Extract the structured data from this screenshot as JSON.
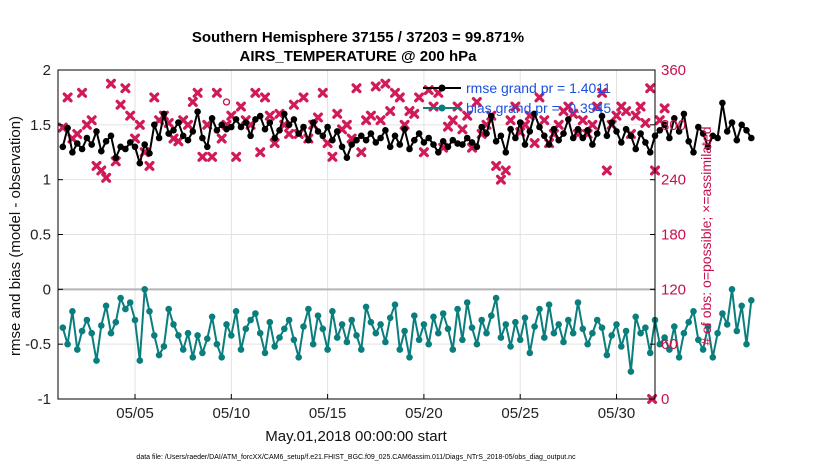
{
  "chart_data": {
    "type": "line",
    "title": "Southern Hemisphere 37155 / 37203 = 99.871%",
    "subtitle": "AIRS_TEMPERATURE @ 200 hPa",
    "xlabel": "May.01,2018 00:00:00 start",
    "ylabel": "rmse and bias (model - observation)",
    "ylabel_right": "# of obs: o=possible; ×=assimilated",
    "xlim": [
      1,
      32
    ],
    "ylim": [
      -1,
      2
    ],
    "ylim_right": [
      0,
      360
    ],
    "x_ticks": [
      5,
      10,
      15,
      20,
      25,
      30
    ],
    "x_tick_labels": [
      "05/05",
      "05/10",
      "05/15",
      "05/20",
      "05/25",
      "05/30"
    ],
    "y_ticks": [
      -1,
      -0.5,
      0,
      0.5,
      1,
      1.5,
      2
    ],
    "y_tick_labels": [
      "-1",
      "-0.5",
      "0",
      "0.5",
      "1",
      "1.5",
      "2"
    ],
    "y_right_ticks": [
      0,
      60,
      120,
      180,
      240,
      300,
      360
    ],
    "y_right_tick_labels": [
      "0",
      "60",
      "120",
      "180",
      "240",
      "300",
      "360"
    ],
    "grid": true,
    "legend_position": "top-right",
    "x_start": 1.25,
    "x_step": 0.25,
    "series": [
      {
        "name": "rmse grand pr = 1.4011",
        "color": "#000000",
        "marker": "circle",
        "values": [
          1.3,
          1.47,
          1.25,
          1.33,
          1.28,
          1.38,
          1.32,
          1.44,
          1.26,
          1.35,
          1.4,
          1.2,
          1.3,
          1.28,
          1.34,
          1.3,
          1.15,
          1.32,
          1.24,
          1.5,
          1.38,
          1.6,
          1.42,
          1.45,
          1.52,
          1.4,
          1.36,
          1.44,
          1.62,
          1.38,
          1.3,
          1.56,
          1.45,
          1.5,
          1.46,
          1.48,
          1.55,
          1.48,
          1.52,
          1.4,
          1.55,
          1.58,
          1.46,
          1.52,
          1.38,
          1.45,
          1.6,
          1.5,
          1.55,
          1.42,
          1.48,
          1.36,
          1.52,
          1.44,
          1.4,
          1.48,
          1.36,
          1.44,
          1.3,
          1.2,
          1.32,
          1.36,
          1.4,
          1.36,
          1.42,
          1.34,
          1.38,
          1.45,
          1.3,
          1.4,
          1.32,
          1.46,
          1.28,
          1.36,
          1.42,
          1.34,
          1.38,
          1.32,
          1.25,
          1.35,
          1.3,
          1.36,
          1.33,
          1.32,
          1.38,
          1.34,
          1.3,
          1.48,
          1.42,
          1.58,
          1.35,
          1.4,
          1.25,
          1.46,
          1.38,
          1.52,
          1.32,
          1.44,
          1.6,
          1.48,
          1.4,
          1.32,
          1.46,
          1.36,
          1.42,
          1.55,
          1.38,
          1.46,
          1.38,
          1.45,
          1.32,
          1.42,
          1.58,
          1.4,
          1.52,
          1.44,
          1.34,
          1.46,
          1.4,
          1.28,
          1.42,
          1.34,
          1.25,
          1.4,
          1.45,
          1.5,
          1.38,
          1.56,
          1.44,
          1.6,
          1.35,
          1.25,
          1.48,
          1.42,
          1.3,
          1.4,
          1.38,
          1.7,
          1.44,
          1.52,
          1.36,
          1.5,
          1.45,
          1.38
        ]
      },
      {
        "name": "bias grand pr = -0.3945",
        "color": "#0a7d7d",
        "marker": "circle",
        "values": [
          -0.35,
          -0.5,
          -0.2,
          -0.55,
          -0.38,
          -0.28,
          -0.4,
          -0.65,
          -0.33,
          -0.15,
          -0.4,
          -0.3,
          -0.08,
          -0.18,
          -0.12,
          -0.28,
          -0.65,
          0.0,
          -0.2,
          -0.42,
          -0.6,
          -0.52,
          -0.18,
          -0.32,
          -0.42,
          -0.55,
          -0.4,
          -0.62,
          -0.42,
          -0.58,
          -0.45,
          -0.25,
          -0.5,
          -0.62,
          -0.32,
          -0.42,
          -0.2,
          -0.55,
          -0.36,
          -0.28,
          -0.22,
          -0.4,
          -0.58,
          -0.3,
          -0.52,
          -0.44,
          -0.36,
          -0.28,
          -0.46,
          -0.62,
          -0.34,
          -0.18,
          -0.5,
          -0.24,
          -0.36,
          -0.55,
          -0.2,
          -0.44,
          -0.32,
          -0.48,
          -0.28,
          -0.42,
          -0.55,
          -0.16,
          -0.3,
          -0.4,
          -0.32,
          -0.48,
          -0.26,
          -0.14,
          -0.55,
          -0.38,
          -0.62,
          -0.24,
          -0.46,
          -0.32,
          -0.5,
          -0.25,
          -0.4,
          -0.22,
          -0.36,
          -0.55,
          -0.18,
          -0.46,
          -0.12,
          -0.35,
          -0.5,
          -0.28,
          -0.4,
          -0.24,
          -0.08,
          -0.44,
          -0.32,
          -0.52,
          -0.3,
          -0.46,
          -0.26,
          -0.58,
          -0.34,
          -0.18,
          -0.44,
          -0.14,
          -0.4,
          -0.32,
          -0.48,
          -0.28,
          -0.4,
          -0.12,
          -0.36,
          -0.5,
          -0.4,
          -0.28,
          -0.35,
          -0.6,
          -0.42,
          -0.32,
          -0.52,
          -0.38,
          -0.75,
          -0.25,
          -0.4,
          -0.35,
          -0.58,
          -0.28,
          -0.5,
          -0.44,
          -0.55,
          -0.34,
          -0.62,
          -0.4,
          -0.3,
          -0.2,
          -0.46,
          -0.55,
          -0.34,
          -0.62,
          -0.4,
          -0.22,
          -0.32,
          0.0,
          -0.38,
          -0.15,
          -0.5,
          -0.1
        ]
      }
    ],
    "obs_possible": {
      "name": "possible",
      "color": "#c8104a",
      "marker": "circle",
      "points": [
        [
          9.75,
          325
        ]
      ]
    },
    "obs_assimilated": {
      "name": "assimilated",
      "color": "#d11a5a",
      "marker": "x",
      "points": [
        [
          1.25,
          297
        ],
        [
          1.5,
          330
        ],
        [
          1.75,
          285
        ],
        [
          2.0,
          290
        ],
        [
          2.25,
          335
        ],
        [
          2.5,
          300
        ],
        [
          2.75,
          305
        ],
        [
          3.0,
          255
        ],
        [
          3.25,
          250
        ],
        [
          3.5,
          242
        ],
        [
          3.75,
          345
        ],
        [
          4.0,
          260
        ],
        [
          4.25,
          322
        ],
        [
          4.5,
          340
        ],
        [
          4.75,
          310
        ],
        [
          5.0,
          285
        ],
        [
          5.25,
          300
        ],
        [
          5.5,
          270
        ],
        [
          5.75,
          255
        ],
        [
          6.0,
          330
        ],
        [
          6.25,
          305
        ],
        [
          6.5,
          310
        ],
        [
          6.75,
          302
        ],
        [
          7.0,
          285
        ],
        [
          7.25,
          282
        ],
        [
          7.5,
          305
        ],
        [
          7.75,
          300
        ],
        [
          8.0,
          325
        ],
        [
          8.25,
          335
        ],
        [
          8.5,
          265
        ],
        [
          8.75,
          300
        ],
        [
          9.0,
          265
        ],
        [
          9.25,
          335
        ],
        [
          9.5,
          285
        ],
        [
          9.75,
          300
        ],
        [
          10.0,
          310
        ],
        [
          10.25,
          265
        ],
        [
          10.5,
          320
        ],
        [
          10.75,
          305
        ],
        [
          11.0,
          300
        ],
        [
          11.25,
          335
        ],
        [
          11.5,
          270
        ],
        [
          11.75,
          330
        ],
        [
          12.0,
          310
        ],
        [
          12.25,
          280
        ],
        [
          12.5,
          312
        ],
        [
          12.75,
          300
        ],
        [
          13.0,
          290
        ],
        [
          13.25,
          322
        ],
        [
          13.5,
          290
        ],
        [
          13.75,
          330
        ],
        [
          14.0,
          285
        ],
        [
          14.25,
          300
        ],
        [
          14.5,
          308
        ],
        [
          14.75,
          335
        ],
        [
          15.0,
          280
        ],
        [
          15.25,
          265
        ],
        [
          15.5,
          312
        ],
        [
          15.75,
          295
        ],
        [
          16.0,
          300
        ],
        [
          16.25,
          285
        ],
        [
          16.5,
          340
        ],
        [
          16.75,
          270
        ],
        [
          17.0,
          305
        ],
        [
          17.25,
          310
        ],
        [
          17.5,
          342
        ],
        [
          17.75,
          305
        ],
        [
          18.0,
          345
        ],
        [
          18.25,
          315
        ],
        [
          18.5,
          335
        ],
        [
          18.75,
          330
        ],
        [
          19.0,
          300
        ],
        [
          19.25,
          315
        ],
        [
          19.5,
          312
        ],
        [
          19.75,
          330
        ],
        [
          20.0,
          270
        ],
        [
          20.25,
          338
        ],
        [
          20.5,
          320
        ],
        [
          20.75,
          335
        ],
        [
          21.0,
          275
        ],
        [
          21.25,
          298
        ],
        [
          21.5,
          305
        ],
        [
          21.75,
          320
        ],
        [
          22.0,
          295
        ],
        [
          22.25,
          310
        ],
        [
          22.5,
          275
        ],
        [
          22.75,
          325
        ],
        [
          23.0,
          290
        ],
        [
          23.25,
          300
        ],
        [
          23.5,
          310
        ],
        [
          23.75,
          255
        ],
        [
          24.0,
          240
        ],
        [
          24.25,
          250
        ],
        [
          24.5,
          305
        ],
        [
          24.75,
          320
        ],
        [
          25.0,
          292
        ],
        [
          25.25,
          300
        ],
        [
          25.5,
          310
        ],
        [
          25.75,
          280
        ],
        [
          26.0,
          330
        ],
        [
          26.25,
          305
        ],
        [
          26.5,
          280
        ],
        [
          26.75,
          290
        ],
        [
          27.0,
          300
        ],
        [
          27.25,
          315
        ],
        [
          27.5,
          320
        ],
        [
          27.75,
          312
        ],
        [
          28.0,
          290
        ],
        [
          28.25,
          305
        ],
        [
          28.5,
          290
        ],
        [
          28.75,
          300
        ],
        [
          29.0,
          320
        ],
        [
          29.25,
          335
        ],
        [
          29.5,
          250
        ],
        [
          29.75,
          300
        ],
        [
          30.0,
          310
        ],
        [
          30.25,
          320
        ],
        [
          30.5,
          315
        ],
        [
          30.75,
          290
        ],
        [
          31.0,
          310
        ],
        [
          31.25,
          320
        ],
        [
          31.5,
          302
        ],
        [
          31.75,
          340
        ],
        [
          32.0,
          250
        ],
        [
          32.25,
          305
        ],
        [
          32.5,
          318
        ],
        [
          31.85,
          0
        ]
      ]
    }
  },
  "legend": {
    "rmse_label": "rmse grand pr = 1.4011",
    "bias_label": "bias grand pr = -0.3945"
  },
  "footer": "data file: /Users/raeder/DAI/ATM_forcXX/CAM6_setup/f.e21.FHIST_BGC.f09_025.CAM6assim.011/Diags_NTrS_2018-05/obs_diag_output.nc",
  "colors": {
    "rmse": "#000000",
    "bias": "#0a7d7d",
    "obs": "#d11a5a",
    "right_axis": "#c8104a",
    "grid": "#e2e2e2",
    "zero_line": "#b5b5b5"
  }
}
